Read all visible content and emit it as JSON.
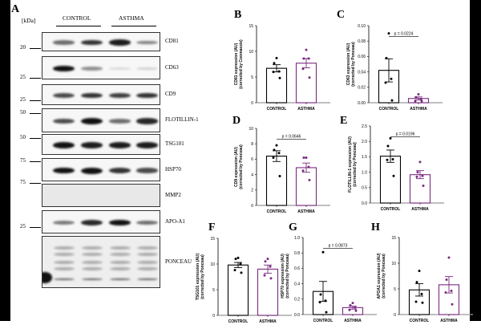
{
  "panel_a": {
    "letter": "A",
    "kda_label": "[kDa]",
    "groups": [
      "CONTROL",
      "ASTHMA"
    ],
    "rows": [
      {
        "label": "CD81",
        "marker": "20",
        "intensity": [
          0.55,
          0.8,
          0.9,
          0.45
        ]
      },
      {
        "label": "CD63",
        "marker": "25",
        "intensity": [
          0.95,
          0.4,
          0.08,
          0.12
        ]
      },
      {
        "label": "CD9",
        "marker": "25",
        "intensity": [
          0.7,
          0.8,
          0.75,
          0.8
        ]
      },
      {
        "label": "FLOTILLIN-1",
        "marker": "50",
        "intensity": [
          0.7,
          0.95,
          0.55,
          0.85
        ]
      },
      {
        "label": "TSG101",
        "marker": "50",
        "intensity": [
          0.95,
          0.9,
          0.9,
          0.9
        ]
      },
      {
        "label": "HSP70",
        "marker": "75",
        "intensity": [
          0.98,
          1.0,
          0.8,
          0.7
        ]
      },
      {
        "label": "MMP2",
        "marker": "75",
        "intensity": [
          0,
          0,
          0,
          0
        ]
      },
      {
        "label": "APO-A1",
        "marker": "25",
        "intensity": [
          0.5,
          0.85,
          0.95,
          0.55
        ]
      },
      {
        "label": "PONCEAU",
        "marker": "",
        "intensity": [
          0.35,
          0.35,
          0.35,
          0.35
        ]
      }
    ]
  },
  "colors": {
    "control": "#000000",
    "asthma": "#7b2a82"
  },
  "chart_data": [
    {
      "letter": "B",
      "type": "bar",
      "categories": [
        "CONTROL",
        "ASTHMA"
      ],
      "ylabel": [
        "CD81 expression (AU)",
        "(corrected by Coomassie)"
      ],
      "ylim": [
        0,
        15
      ],
      "yticks": [
        "0",
        "5",
        "10",
        "15"
      ],
      "ytick_values": [
        0,
        5,
        10,
        15
      ],
      "means": [
        6.7,
        7.7
      ],
      "sem": [
        0.7,
        0.9
      ],
      "points": [
        [
          8.7,
          7.7,
          6.1,
          6.0,
          4.8
        ],
        [
          10.3,
          8.6,
          8.6,
          6.6,
          4.9
        ]
      ],
      "pvalue": ""
    },
    {
      "letter": "C",
      "type": "bar",
      "categories": [
        "CONTROL",
        "ASTHMA"
      ],
      "ylabel": [
        "CD63 expression (AU)",
        "(corrected by Ponceau)"
      ],
      "ylim": [
        0,
        0.1
      ],
      "yticks": [
        "0.00",
        "0.02",
        "0.04",
        "0.06",
        "0.08",
        "0.10"
      ],
      "ytick_values": [
        0,
        0.02,
        0.04,
        0.06,
        0.08,
        0.1
      ],
      "means": [
        0.042,
        0.0055
      ],
      "sem": [
        0.015,
        0.002
      ],
      "points": [
        [
          0.09,
          0.058,
          0.031,
          0.026,
          0.003
        ],
        [
          0.011,
          0.007,
          0.005,
          0.002,
          0.002
        ]
      ],
      "pvalue": "p = 0.0224"
    },
    {
      "letter": "D",
      "type": "bar",
      "categories": [
        "CONTROL",
        "ASTHMA"
      ],
      "ylabel": [
        "CD9 expression (AU)",
        "(corrected by Ponceau)"
      ],
      "ylim": [
        0,
        10
      ],
      "yticks": [
        "0",
        "2",
        "4",
        "6",
        "8",
        "10"
      ],
      "ytick_values": [
        0,
        2,
        4,
        6,
        8,
        10
      ],
      "means": [
        6.4,
        4.9
      ],
      "sem": [
        0.7,
        0.6
      ],
      "points": [
        [
          7.8,
          7.2,
          6.8,
          6.2,
          3.8
        ],
        [
          6.2,
          6.2,
          5.0,
          4.5,
          3.3
        ]
      ],
      "pvalue": "p = 0.0646"
    },
    {
      "letter": "E",
      "type": "bar",
      "categories": [
        "CONTROL",
        "ASTHMA"
      ],
      "ylabel": [
        "FLOTILLIN-1 expression (AU)",
        "(corrected by Ponceau)"
      ],
      "ylim": [
        0,
        2.5
      ],
      "yticks": [
        "0.0",
        "0.5",
        "1.0",
        "1.5",
        "2.0",
        "2.5"
      ],
      "ytick_values": [
        0,
        0.5,
        1,
        1.5,
        2,
        2.5
      ],
      "means": [
        1.52,
        0.92
      ],
      "sem": [
        0.2,
        0.13
      ],
      "points": [
        [
          2.1,
          1.85,
          1.42,
          1.4,
          0.88
        ],
        [
          1.33,
          1.0,
          0.88,
          0.85,
          0.56
        ]
      ],
      "pvalue": "p = 0.0196"
    },
    {
      "letter": "F",
      "type": "bar",
      "categories": [
        "CONTROL",
        "ASTHMA"
      ],
      "ylabel": [
        "TSG101 expression (AU)",
        "(corrected by Ponceau)"
      ],
      "ylim": [
        0,
        15
      ],
      "yticks": [
        "0",
        "5",
        "10",
        "15"
      ],
      "ytick_values": [
        0,
        5,
        10,
        15
      ],
      "means": [
        9.8,
        9.0
      ],
      "sem": [
        0.5,
        0.8
      ],
      "points": [
        [
          11.2,
          11.0,
          10.0,
          8.8,
          8.3
        ],
        [
          11.0,
          10.5,
          9.5,
          7.8,
          7.2
        ]
      ],
      "pvalue": ""
    },
    {
      "letter": "G",
      "type": "bar",
      "categories": [
        "CONTROL",
        "ASTHMA"
      ],
      "ylabel": [
        "HSP70 expression (AU)",
        "(corrected by Ponceau)"
      ],
      "ylim": [
        0,
        1.0
      ],
      "yticks": [
        "0.0",
        "0.2",
        "0.4",
        "0.6",
        "0.8",
        "1.0"
      ],
      "ytick_values": [
        0,
        0.2,
        0.4,
        0.6,
        0.8,
        1.0
      ],
      "means": [
        0.3,
        0.09
      ],
      "sem": [
        0.13,
        0.02
      ],
      "points": [
        [
          0.81,
          0.26,
          0.18,
          0.16,
          0.03
        ],
        [
          0.15,
          0.12,
          0.09,
          0.06,
          0.05
        ]
      ],
      "pvalue": "p = 0.0873"
    },
    {
      "letter": "H",
      "type": "bar",
      "categories": [
        "CONTROL",
        "ASTHMA"
      ],
      "ylabel": [
        "APOA1 expression (AU)",
        "(corrected by Ponceau)"
      ],
      "ylim": [
        0,
        15
      ],
      "yticks": [
        "0",
        "5",
        "10",
        "15"
      ],
      "ytick_values": [
        0,
        5,
        10,
        15
      ],
      "means": [
        4.8,
        5.8
      ],
      "sem": [
        1.2,
        1.6
      ],
      "points": [
        [
          8.5,
          6.3,
          4.0,
          2.5,
          2.3
        ],
        [
          11.1,
          6.8,
          4.6,
          4.3,
          2.0
        ]
      ],
      "pvalue": ""
    }
  ]
}
